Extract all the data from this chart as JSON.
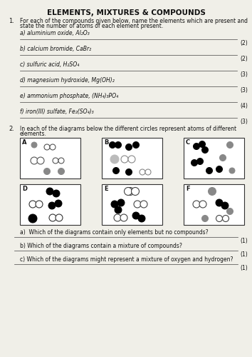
{
  "title": "ELEMENTS, MIXTURES & COMPOUNDS",
  "q1_intro": "For each of the compounds given below, name the elements which are present and state the number of atoms of each element present.",
  "q1_items": [
    {
      "label": "a) aluminium oxide, Al₂O₃",
      "marks": "(2)"
    },
    {
      "label": "b) calcium bromide, CaBr₂",
      "marks": "(2)"
    },
    {
      "label": "c) sulfuric acid, H₂SO₄",
      "marks": "(3)"
    },
    {
      "label": "d) magnesium hydroxide, Mg(OH)₂",
      "marks": "(3)"
    },
    {
      "label": "e) ammonium phosphate, (NH₄)₃PO₄",
      "marks": "(4)"
    },
    {
      "label": "f) iron(III) sulfate, Fe₂(SO₄)₃",
      "marks": "(3)"
    }
  ],
  "q2_intro": "In each of the diagrams below the different circles represent atoms of different elements.",
  "q2_items": [
    {
      "label": "a)  Which of the diagrams contain only elements but no compounds?",
      "marks": "(1)"
    },
    {
      "label": "b) Which of the diagrams contain a mixture of compounds?",
      "marks": "(1)"
    },
    {
      "label": "c) Which of the diagrams might represent a mixture of oxygen and hydrogen?",
      "marks": "(1)"
    }
  ],
  "bg_color": "#f0efe8"
}
